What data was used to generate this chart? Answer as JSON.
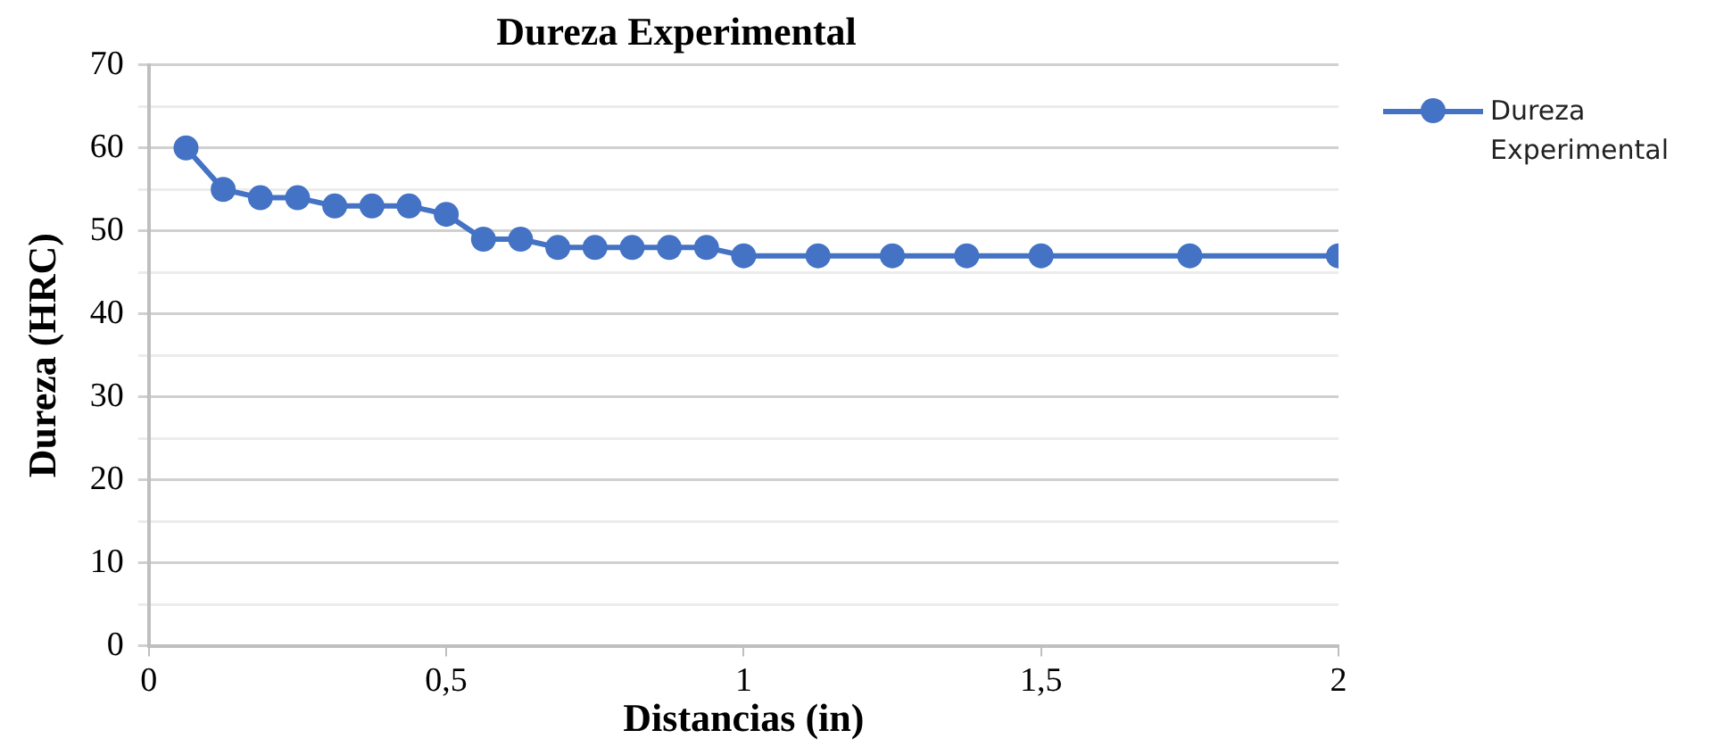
{
  "chart_data": {
    "type": "line",
    "title": "Dureza Experimental",
    "xlabel": "Distancias (in)",
    "ylabel": "Dureza (HRC)",
    "x": [
      0.0625,
      0.125,
      0.1875,
      0.25,
      0.3125,
      0.375,
      0.4375,
      0.5,
      0.5625,
      0.625,
      0.6875,
      0.75,
      0.8125,
      0.875,
      0.9375,
      1,
      1.125,
      1.25,
      1.375,
      1.5,
      1.75,
      2
    ],
    "series": [
      {
        "name": "Dureza Experimental",
        "color": "#4472c4",
        "values": [
          60,
          55,
          54,
          54,
          53,
          53,
          53,
          52,
          49,
          49,
          48,
          48,
          48,
          48,
          48,
          47,
          47,
          47,
          47,
          47,
          47,
          47
        ]
      }
    ],
    "xlim": [
      0,
      2
    ],
    "xticks": [
      0,
      {
        "value": 0.5,
        "label": "0,5"
      },
      1,
      {
        "value": 1.5,
        "label": "1,5"
      },
      2
    ],
    "ylim": [
      0,
      70
    ],
    "yticks": [
      0,
      {
        "value": 5,
        "label": null
      },
      10,
      {
        "value": 15,
        "label": null
      },
      20,
      {
        "value": 25,
        "label": null
      },
      30,
      {
        "value": 35,
        "label": null
      },
      40,
      {
        "value": 45,
        "label": null
      },
      50,
      {
        "value": 55,
        "label": null
      },
      60,
      {
        "value": 65,
        "label": null
      },
      70
    ],
    "grid": "y",
    "legend": "right",
    "marker": "circle",
    "line_style": "solid"
  }
}
